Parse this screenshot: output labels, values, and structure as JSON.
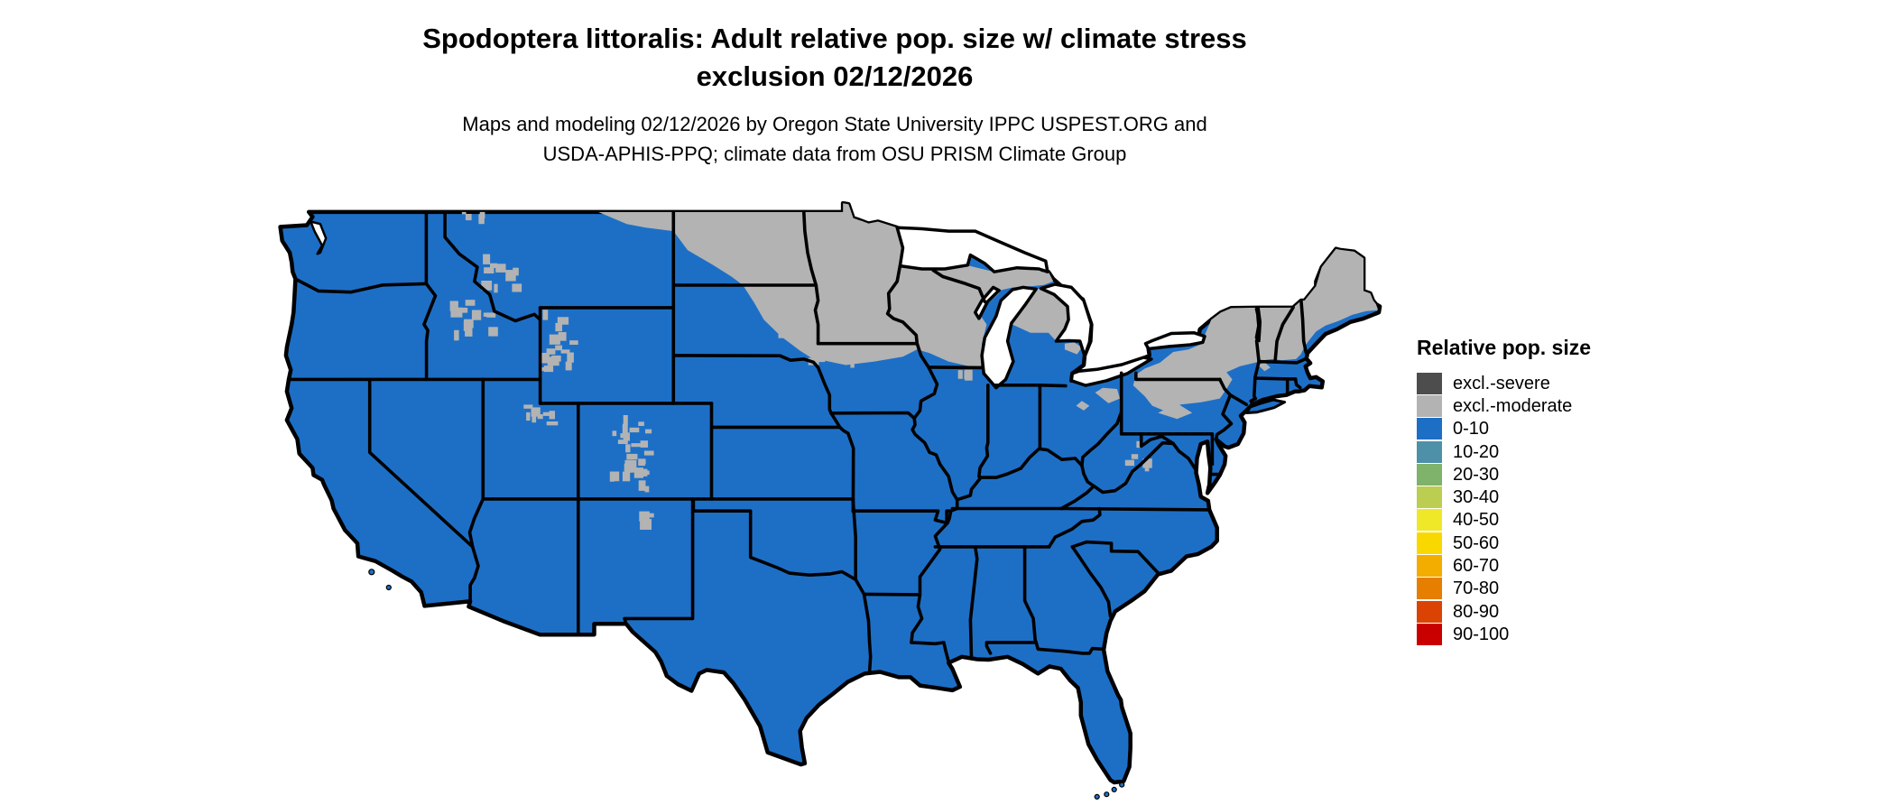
{
  "header": {
    "title_line1": "Spodoptera littoralis: Adult relative pop. size w/ climate stress",
    "title_line2": "exclusion 02/12/2026",
    "subtitle_line1": "Maps and modeling 02/12/2026 by Oregon State University IPPC USPEST.ORG and",
    "subtitle_line2": "USDA-APHIS-PPQ; climate data from OSU PRISM Climate Group"
  },
  "legend": {
    "title": "Relative pop. size",
    "items": [
      {
        "label": "excl.-severe",
        "color": "#4D4D4D"
      },
      {
        "label": "excl.-moderate",
        "color": "#B3B3B3"
      },
      {
        "label": "0-10",
        "color": "#1D6FC6"
      },
      {
        "label": "10-20",
        "color": "#4E90A8"
      },
      {
        "label": "20-30",
        "color": "#7FB26B"
      },
      {
        "label": "30-40",
        "color": "#BCCE51"
      },
      {
        "label": "40-50",
        "color": "#EFE829"
      },
      {
        "label": "50-60",
        "color": "#F9D800"
      },
      {
        "label": "60-70",
        "color": "#F3AC00"
      },
      {
        "label": "70-80",
        "color": "#E67E00"
      },
      {
        "label": "80-90",
        "color": "#DB4304"
      },
      {
        "label": "90-100",
        "color": "#C90000"
      }
    ]
  },
  "map": {
    "colors": {
      "population_0_10": "#1D6FC6",
      "exclusion_moderate": "#B3B3B3",
      "state_border": "#000000",
      "water": "#FFFFFF"
    }
  },
  "chart_data": {
    "type": "choropleth-map",
    "region": "Contiguous United States with state borders",
    "title": "Spodoptera littoralis: Adult relative pop. size w/ climate stress exclusion 02/12/2026",
    "legend_title": "Relative pop. size",
    "classes": [
      "excl.-severe",
      "excl.-moderate",
      "0-10",
      "10-20",
      "20-30",
      "30-40",
      "40-50",
      "50-60",
      "60-70",
      "70-80",
      "80-90",
      "90-100"
    ],
    "classes_visible_on_map": [
      "0-10",
      "excl.-moderate"
    ],
    "map_summary": {
      "0-10": "Most of the contiguous US: West Coast, Southwest, Great Plains, Texas, South, Midwest south of ~43N, Mid-Atlantic, southern New England, Florida",
      "excl.-moderate": "Northern tier: northern Montana, most of North Dakota, northeastern South Dakota, Minnesota, northern Iowa strip, Wisconsin, Upper and northern Lower Michigan, upstate New York, northern/central Pennsylvania patches, northeast Ohio patches, Vermont, New Hampshire, interior Maine, plus mountain patches in Idaho, western Montana, Wyoming, Utah and Colorado"
    },
    "legend_position": "right"
  }
}
